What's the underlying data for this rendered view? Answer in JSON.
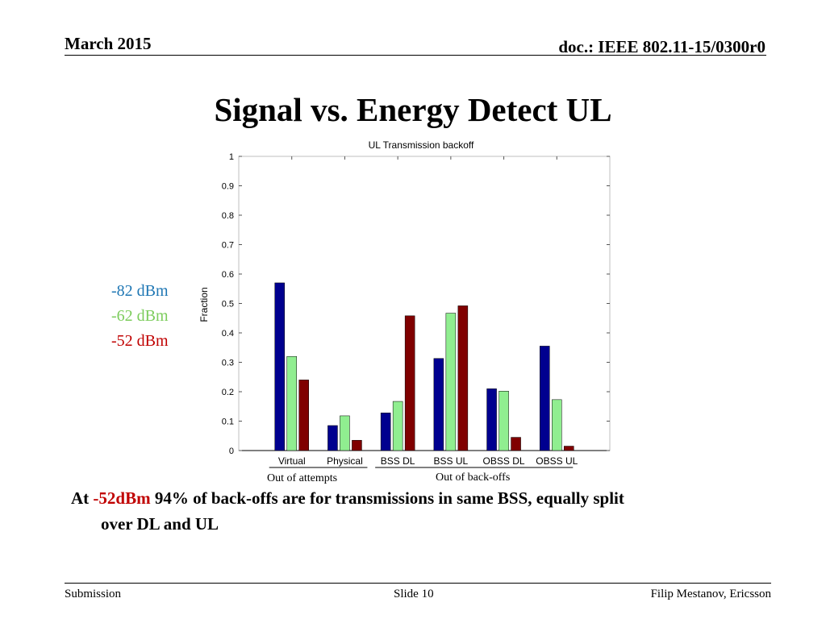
{
  "header": {
    "date": "March 2015",
    "doc": "doc.: IEEE 802.11-15/0300r0"
  },
  "slide_title": "Signal vs. Energy Detect UL",
  "legend": [
    {
      "label": "-82 dBm",
      "color": "#1f77b4"
    },
    {
      "label": "-62 dBm",
      "color": "#7ccc5c"
    },
    {
      "label": "-52 dBm",
      "color": "#c00000"
    }
  ],
  "group_labels": {
    "attempts": "Out of attempts",
    "backoffs": "Out of back-offs"
  },
  "bottom": {
    "at": "At",
    "value": "-52dBm",
    "value_color": "#c00000",
    "rest": "94% of back-offs are for transmissions in same BSS, equally split",
    "line2": "over DL and UL"
  },
  "footer": {
    "left": "Submission",
    "center": "Slide 10",
    "right": "Filip Mestanov, Ericsson"
  },
  "chart_data": {
    "type": "bar",
    "title": "UL Transmission backoff",
    "ylabel": "Fraction",
    "xlabel": "",
    "ylim": [
      0,
      1
    ],
    "yticks": [
      "0",
      "0.1",
      "0.2",
      "0.3",
      "0.4",
      "0.5",
      "0.6",
      "0.7",
      "0.8",
      "0.9",
      "1"
    ],
    "categories": [
      "Virtual",
      "Physical",
      "BSS DL",
      "BSS UL",
      "OBSS DL",
      "OBSS UL"
    ],
    "series": [
      {
        "values": [
          0.57,
          0.085,
          0.128,
          0.313,
          0.21,
          0.355
        ],
        "color": "#00008f"
      },
      {
        "values": [
          0.32,
          0.118,
          0.167,
          0.467,
          0.202,
          0.173
        ],
        "color": "#90ee90"
      },
      {
        "values": [
          0.24,
          0.035,
          0.458,
          0.492,
          0.045,
          0.015
        ],
        "color": "#800000"
      }
    ],
    "grid": false
  }
}
